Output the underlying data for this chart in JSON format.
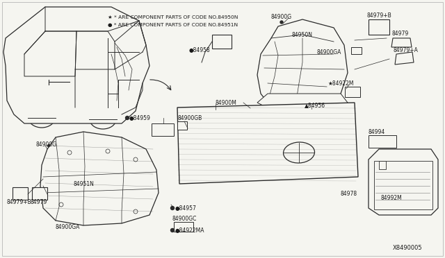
{
  "bg": "#f5f5f0",
  "lc": "#2a2a2a",
  "tc": "#1a1a1a",
  "fs_small": 5.5,
  "fs_label": 6.0,
  "fs_code": 5.8,
  "fig_w": 6.4,
  "fig_h": 3.72,
  "dpi": 100,
  "note1": "★ * ARE COMPONENT PARTS OF CODE NO.84950N",
  "note2": "● * ARE COMPONENT PARTS OF CODE NO.84951N",
  "diagram_code": "X8490005"
}
